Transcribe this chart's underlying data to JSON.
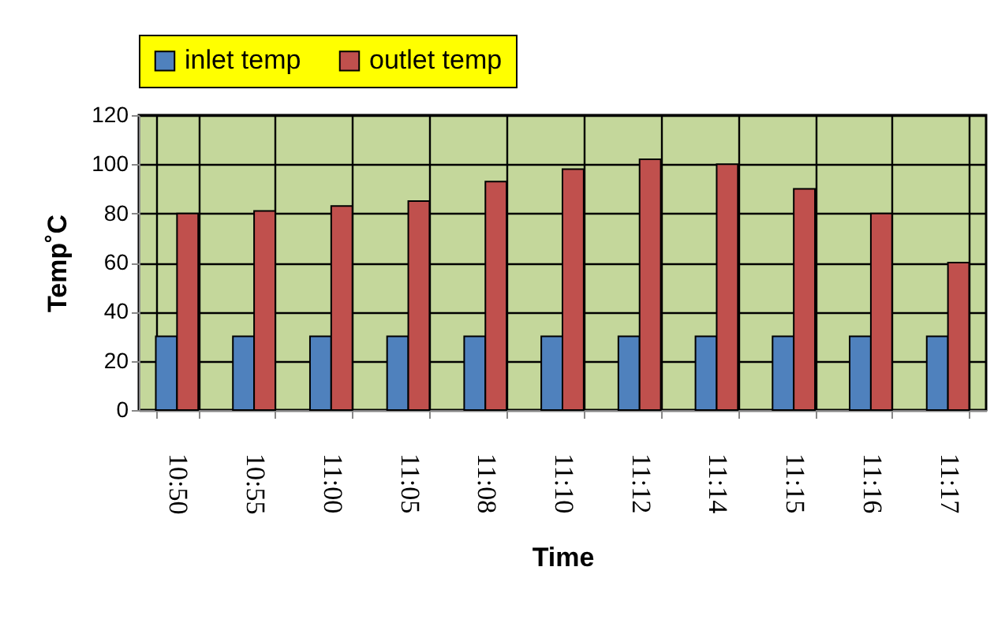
{
  "chart_data": {
    "type": "bar",
    "xlabel": "Time",
    "ylabel": "Temp˚C",
    "categories": [
      "10:50",
      "10:55",
      "11:00",
      "11:05",
      "11:08",
      "11:10",
      "11:12",
      "11:14",
      "11:15",
      "11:16",
      "11:17"
    ],
    "series": [
      {
        "name": "inlet temp",
        "color": "#4f81bd",
        "values": [
          30,
          30,
          30,
          30,
          30,
          30,
          30,
          30,
          30,
          30,
          30
        ]
      },
      {
        "name": "outlet temp",
        "color": "#c0504d",
        "values": [
          80,
          81,
          83,
          85,
          93,
          98,
          102,
          100,
          90,
          80,
          60
        ]
      }
    ],
    "ylim": [
      0,
      120
    ],
    "yticks": [
      0,
      20,
      40,
      60,
      80,
      100,
      120
    ],
    "grid": true,
    "legend": "top"
  }
}
